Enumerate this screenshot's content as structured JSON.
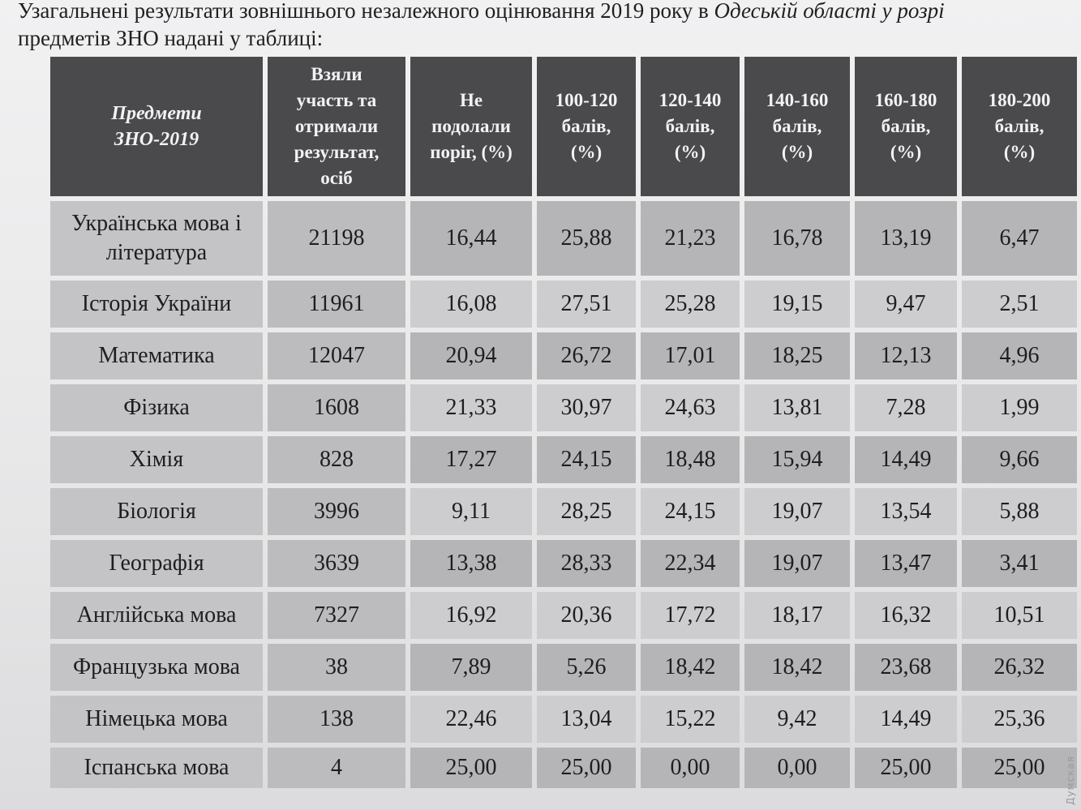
{
  "intro": {
    "line1_prefix": "Узагальнені результати зовнішнього незалежного оцінювання 2019 року в ",
    "line1_italic": "Одеській області у розрі",
    "line2": "предметів ЗНО надані у таблиці:"
  },
  "table": {
    "headers": [
      [
        "Предмети",
        "ЗНО-2019"
      ],
      [
        "Взяли",
        "участь та",
        "отримали",
        "результат,",
        "осіб"
      ],
      [
        "Не",
        "подолали",
        "поріг, (%)"
      ],
      [
        "100-120",
        "балів,",
        "(%)"
      ],
      [
        "120-140",
        "балів,",
        "(%)"
      ],
      [
        "140-160",
        "балів,",
        "(%)"
      ],
      [
        "160-180",
        "балів,",
        "(%)"
      ],
      [
        "180-200",
        "балів,",
        "(%)"
      ]
    ],
    "rows": [
      [
        "Українська мова і література",
        "21198",
        "16,44",
        "25,88",
        "21,23",
        "16,78",
        "13,19",
        "6,47"
      ],
      [
        "Історія України",
        "11961",
        "16,08",
        "27,51",
        "25,28",
        "19,15",
        "9,47",
        "2,51"
      ],
      [
        "Математика",
        "12047",
        "20,94",
        "26,72",
        "17,01",
        "18,25",
        "12,13",
        "4,96"
      ],
      [
        "Фізика",
        "1608",
        "21,33",
        "30,97",
        "24,63",
        "13,81",
        "7,28",
        "1,99"
      ],
      [
        "Хімія",
        "828",
        "17,27",
        "24,15",
        "18,48",
        "15,94",
        "14,49",
        "9,66"
      ],
      [
        "Біологія",
        "3996",
        "9,11",
        "28,25",
        "24,15",
        "19,07",
        "13,54",
        "5,88"
      ],
      [
        "Географія",
        "3639",
        "13,38",
        "28,33",
        "22,34",
        "19,07",
        "13,47",
        "3,41"
      ],
      [
        "Англійська мова",
        "7327",
        "16,92",
        "20,36",
        "17,72",
        "18,17",
        "16,32",
        "10,51"
      ],
      [
        "Французька мова",
        "38",
        "7,89",
        "5,26",
        "18,42",
        "18,42",
        "23,68",
        "26,32"
      ],
      [
        "Німецька мова",
        "138",
        "22,46",
        "13,04",
        "15,22",
        "9,42",
        "14,49",
        "25,36"
      ],
      [
        "Іспанська мова",
        "4",
        "25,00",
        "25,00",
        "0,00",
        "0,00",
        "25,00",
        "25,00"
      ]
    ]
  },
  "watermark": "Думская"
}
